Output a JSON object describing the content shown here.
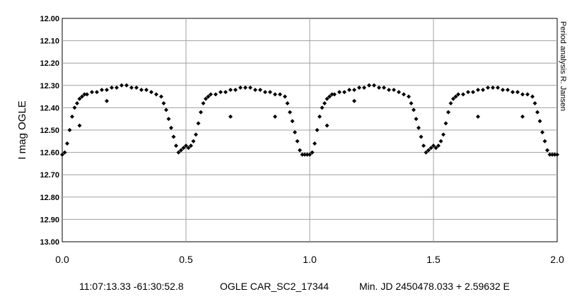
{
  "chart_data": {
    "type": "scatter",
    "title": "",
    "xlabel": "",
    "ylabel": "I mag OGLE",
    "xlim": [
      0.0,
      2.0
    ],
    "ylim": [
      12.0,
      13.0
    ],
    "y_inverted": true,
    "grid": true,
    "x_ticks": [
      "0.0",
      "0.5",
      "1.0",
      "1.5",
      "2.0"
    ],
    "y_ticks": [
      "12.00",
      "12.10",
      "12.20",
      "12.30",
      "12.40",
      "12.50",
      "12.60",
      "12.70",
      "12.80",
      "12.90",
      "13.00"
    ],
    "marker_color": "#000000",
    "side_note": "Period analysis R. Jansen",
    "footer": {
      "coords": "11:07:13.33 -61:30:52.8",
      "star": "OGLE CAR_SC2_17344",
      "ephemeris": "Min. JD 2450478.033 + 2.59632 E"
    },
    "x": [
      0.0,
      0.01,
      0.02,
      0.03,
      0.04,
      0.05,
      0.06,
      0.07,
      0.08,
      0.09,
      0.1,
      0.12,
      0.14,
      0.16,
      0.18,
      0.2,
      0.22,
      0.24,
      0.26,
      0.28,
      0.3,
      0.32,
      0.34,
      0.36,
      0.38,
      0.4,
      0.41,
      0.42,
      0.43,
      0.44,
      0.45,
      0.46,
      0.47,
      0.48,
      0.49,
      0.5,
      0.51,
      0.52,
      0.53,
      0.54,
      0.55,
      0.56,
      0.57,
      0.58,
      0.59,
      0.6,
      0.62,
      0.64,
      0.66,
      0.68,
      0.7,
      0.72,
      0.74,
      0.76,
      0.78,
      0.8,
      0.82,
      0.84,
      0.86,
      0.88,
      0.9,
      0.91,
      0.92,
      0.93,
      0.94,
      0.95,
      0.96,
      0.97,
      0.98,
      0.99,
      1.0,
      1.01,
      1.02,
      1.03,
      1.04,
      1.05,
      1.06,
      1.07,
      1.08,
      1.09,
      1.1,
      1.12,
      1.14,
      1.16,
      1.18,
      1.2,
      1.22,
      1.24,
      1.26,
      1.28,
      1.3,
      1.32,
      1.34,
      1.36,
      1.38,
      1.4,
      1.41,
      1.42,
      1.43,
      1.44,
      1.45,
      1.46,
      1.47,
      1.48,
      1.49,
      1.5,
      1.51,
      1.52,
      1.53,
      1.54,
      1.55,
      1.56,
      1.57,
      1.58,
      1.59,
      1.6,
      1.62,
      1.64,
      1.66,
      1.68,
      1.7,
      1.72,
      1.74,
      1.76,
      1.78,
      1.8,
      1.82,
      1.84,
      1.86,
      1.88,
      1.9,
      1.91,
      1.92,
      1.93,
      1.94,
      1.95,
      1.96,
      1.97,
      1.98,
      1.99,
      2.0,
      0.18,
      0.68,
      0.86,
      1.18,
      1.68,
      1.86,
      0.07,
      1.07
    ],
    "y": [
      12.61,
      12.6,
      12.56,
      12.5,
      12.44,
      12.4,
      12.38,
      12.36,
      12.35,
      12.34,
      12.34,
      12.33,
      12.33,
      12.32,
      12.32,
      12.31,
      12.31,
      12.3,
      12.3,
      12.31,
      12.31,
      12.32,
      12.32,
      12.33,
      12.34,
      12.35,
      12.38,
      12.41,
      12.45,
      12.49,
      12.53,
      12.57,
      12.6,
      12.59,
      12.58,
      12.57,
      12.58,
      12.57,
      12.55,
      12.52,
      12.47,
      12.42,
      12.38,
      12.36,
      12.35,
      12.34,
      12.34,
      12.33,
      12.33,
      12.32,
      12.32,
      12.31,
      12.31,
      12.31,
      12.32,
      12.32,
      12.33,
      12.33,
      12.34,
      12.34,
      12.35,
      12.38,
      12.42,
      12.46,
      12.51,
      12.55,
      12.59,
      12.61,
      12.61,
      12.61,
      12.61,
      12.6,
      12.56,
      12.5,
      12.44,
      12.4,
      12.38,
      12.36,
      12.35,
      12.34,
      12.34,
      12.33,
      12.33,
      12.32,
      12.32,
      12.31,
      12.31,
      12.3,
      12.3,
      12.31,
      12.31,
      12.32,
      12.32,
      12.33,
      12.34,
      12.35,
      12.38,
      12.41,
      12.45,
      12.49,
      12.53,
      12.57,
      12.6,
      12.59,
      12.58,
      12.57,
      12.58,
      12.57,
      12.55,
      12.52,
      12.47,
      12.42,
      12.38,
      12.36,
      12.35,
      12.34,
      12.34,
      12.33,
      12.33,
      12.32,
      12.32,
      12.31,
      12.31,
      12.31,
      12.32,
      12.32,
      12.33,
      12.33,
      12.34,
      12.34,
      12.35,
      12.38,
      12.42,
      12.46,
      12.51,
      12.55,
      12.59,
      12.61,
      12.61,
      12.61,
      12.61,
      12.37,
      12.44,
      12.44,
      12.37,
      12.44,
      12.44,
      12.48,
      12.48
    ]
  }
}
